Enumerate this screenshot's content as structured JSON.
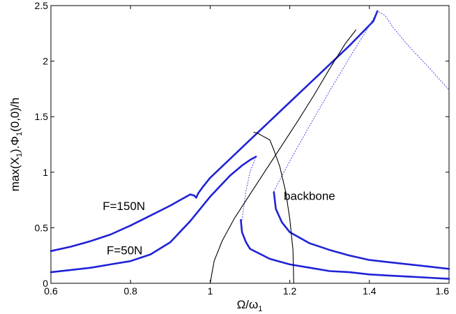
{
  "chart_data": {
    "type": "line",
    "title": "",
    "xlabel": {
      "main": "Ω/ω",
      "sub": "1"
    },
    "ylabel": {
      "p1": "max(X",
      "s1": "1",
      "p2": ").Φ",
      "s2": "1",
      "p3": "(0,0)/h"
    },
    "xlim": [
      0.6,
      1.6
    ],
    "ylim": [
      0,
      2.5
    ],
    "grid": false,
    "legend": "none",
    "xticks": [
      0.6,
      0.8,
      1,
      1.2,
      1.4,
      1.6
    ],
    "xtick_labels": [
      "0.6",
      "0.8",
      "1",
      "1.2",
      "1.4",
      "1.6"
    ],
    "yticks": [
      0,
      0.5,
      1,
      1.5,
      2,
      2.5
    ],
    "ytick_labels": [
      "0",
      "0.5",
      "1",
      "1.5",
      "2",
      "2.5"
    ],
    "colors": {
      "stable": "#1f22d6",
      "unstable": "#4a4ae0",
      "backbone": "#000000"
    },
    "series": [
      {
        "style": "solid-blue",
        "x": [
          0.6,
          0.65,
          0.7,
          0.75,
          0.8,
          0.85,
          0.9,
          0.93,
          0.95,
          0.96,
          0.965,
          0.97,
          0.98,
          1.0,
          1.05,
          1.1,
          1.15,
          1.2,
          1.25,
          1.3,
          1.35,
          1.38,
          1.41,
          1.42
        ],
        "y": [
          0.29,
          0.33,
          0.38,
          0.44,
          0.52,
          0.61,
          0.7,
          0.76,
          0.8,
          0.79,
          0.77,
          0.81,
          0.86,
          0.95,
          1.12,
          1.29,
          1.46,
          1.63,
          1.8,
          1.97,
          2.14,
          2.25,
          2.36,
          2.45
        ]
      },
      {
        "style": "dotted-blue",
        "x": [
          1.16,
          1.2,
          1.25,
          1.3,
          1.35,
          1.4,
          1.42,
          1.44,
          1.46,
          1.5,
          1.55,
          1.6
        ],
        "y": [
          0.83,
          1.1,
          1.42,
          1.73,
          2.03,
          2.32,
          2.45,
          2.41,
          2.3,
          2.13,
          1.94,
          1.74
        ]
      },
      {
        "style": "solid-blue",
        "x": [
          1.16,
          1.165,
          1.18,
          1.2,
          1.25,
          1.3,
          1.35,
          1.4,
          1.45,
          1.5,
          1.55,
          1.6
        ],
        "y": [
          0.82,
          0.67,
          0.55,
          0.46,
          0.36,
          0.3,
          0.25,
          0.21,
          0.19,
          0.17,
          0.15,
          0.13
        ]
      },
      {
        "style": "solid-blue",
        "x": [
          0.6,
          0.65,
          0.7,
          0.75,
          0.8,
          0.85,
          0.9,
          0.95,
          1.0,
          1.05,
          1.08,
          1.1,
          1.115
        ],
        "y": [
          0.1,
          0.12,
          0.14,
          0.17,
          0.2,
          0.26,
          0.37,
          0.56,
          0.78,
          0.97,
          1.06,
          1.11,
          1.14
        ]
      },
      {
        "style": "dotted-blue",
        "x": [
          1.08,
          1.09,
          1.1,
          1.115
        ],
        "y": [
          0.57,
          0.83,
          1.0,
          1.14
        ]
      },
      {
        "style": "solid-blue",
        "x": [
          1.077,
          1.08,
          1.09,
          1.1,
          1.15,
          1.2,
          1.25,
          1.3,
          1.35,
          1.4,
          1.45,
          1.5,
          1.55,
          1.6
        ],
        "y": [
          0.57,
          0.46,
          0.37,
          0.31,
          0.22,
          0.17,
          0.14,
          0.11,
          0.1,
          0.08,
          0.07,
          0.06,
          0.05,
          0.04
        ]
      },
      {
        "style": "backbone",
        "x": [
          1.0,
          1.01,
          1.03,
          1.06,
          1.1,
          1.14,
          1.18,
          1.22,
          1.26,
          1.3,
          1.34,
          1.366
        ],
        "y": [
          0.0,
          0.2,
          0.38,
          0.58,
          0.8,
          1.02,
          1.24,
          1.46,
          1.69,
          1.93,
          2.16,
          2.28
        ]
      },
      {
        "style": "backbone",
        "x": [
          1.21,
          1.208,
          1.2,
          1.19,
          1.175,
          1.16,
          1.15,
          1.13,
          1.12,
          1.11
        ],
        "y": [
          0.0,
          0.3,
          0.58,
          0.82,
          1.05,
          1.2,
          1.29,
          1.33,
          1.35,
          1.36
        ]
      }
    ],
    "annotations": [
      {
        "text": "F=150N",
        "x": 0.73,
        "y": 0.66
      },
      {
        "text": "F=50N",
        "x": 0.74,
        "y": 0.26
      },
      {
        "text": "backbone",
        "x": 1.185,
        "y": 0.75
      }
    ]
  }
}
